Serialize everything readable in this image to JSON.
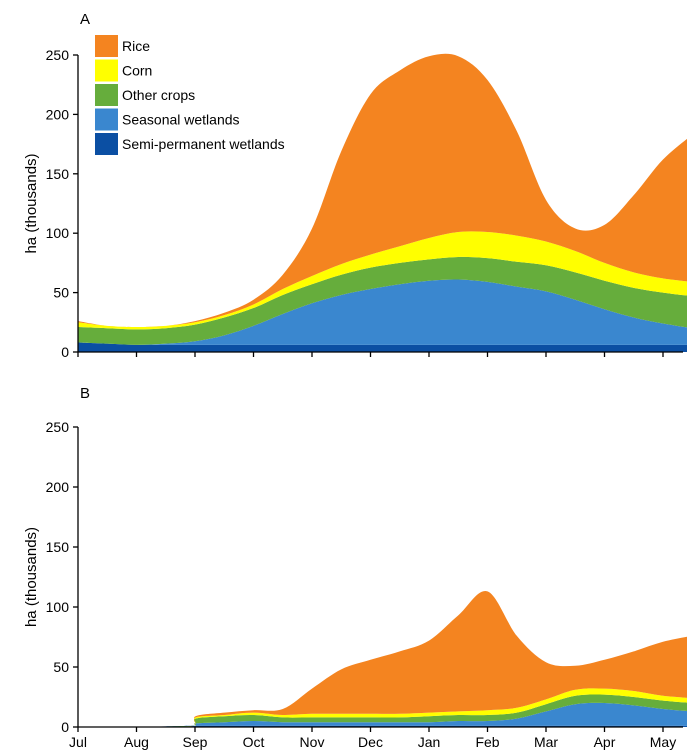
{
  "chart_data": [
    {
      "type": "area",
      "panel": "A",
      "ylabel": "ha (thousands)",
      "ylim": [
        0,
        250
      ],
      "yticks": [
        0,
        50,
        100,
        150,
        200,
        250
      ],
      "x": [
        0,
        0.5,
        1,
        1.5,
        2,
        2.5,
        3,
        3.5,
        4,
        4.5,
        5,
        5.5,
        6,
        6.5,
        7,
        7.5,
        8,
        8.5,
        9,
        9.5,
        10,
        10.5
      ],
      "stacked": true,
      "series": [
        {
          "name": "Semi-permanent wetlands",
          "color": "#0b4fa3",
          "values": [
            8,
            7,
            6,
            6,
            6,
            6,
            6,
            6,
            6,
            6,
            6,
            6,
            6,
            6,
            6,
            6,
            6,
            6,
            6,
            6,
            6,
            6
          ]
        },
        {
          "name": "Seasonal wetlands",
          "color": "#3a87cf",
          "values": [
            0,
            0,
            0,
            1,
            3,
            8,
            16,
            26,
            35,
            42,
            47,
            51,
            54,
            55,
            53,
            49,
            45,
            38,
            30,
            23,
            18,
            14
          ]
        },
        {
          "name": "Other crops",
          "color": "#66ad3c",
          "values": [
            13,
            13,
            13,
            13,
            14,
            15,
            15,
            16,
            16,
            17,
            18,
            18,
            18,
            19,
            20,
            21,
            22,
            23,
            24,
            25,
            26,
            27
          ]
        },
        {
          "name": "Corn",
          "color": "#ffff00",
          "values": [
            4,
            2,
            2,
            2,
            2,
            2,
            3,
            5,
            7,
            9,
            11,
            14,
            18,
            21,
            22,
            22,
            20,
            18,
            15,
            13,
            12,
            12
          ]
        },
        {
          "name": "Rice",
          "color": "#f48420",
          "values": [
            1,
            0,
            0,
            0,
            1,
            2,
            4,
            12,
            40,
            95,
            135,
            148,
            153,
            148,
            128,
            88,
            35,
            19,
            32,
            65,
            100,
            124
          ]
        }
      ],
      "legend_position": "top-left"
    },
    {
      "type": "area",
      "panel": "B",
      "ylabel": "ha (thousands)",
      "ylim": [
        0,
        250
      ],
      "yticks": [
        0,
        50,
        100,
        150,
        200,
        250
      ],
      "x": [
        0,
        0.5,
        1,
        1.5,
        1.99,
        2.01,
        2.5,
        3,
        3.5,
        4,
        4.5,
        5,
        5.5,
        6,
        6.5,
        7,
        7.5,
        8,
        8.5,
        9,
        9.5,
        10,
        10.5
      ],
      "stacked": true,
      "series": [
        {
          "name": "Semi-permanent wetlands",
          "color": "#0b4fa3",
          "values": [
            0,
            0,
            0,
            0.5,
            1,
            1,
            1,
            1,
            1,
            1,
            1,
            1,
            1,
            1,
            1,
            1,
            1,
            1,
            1,
            1,
            1,
            1,
            1
          ]
        },
        {
          "name": "Seasonal wetlands",
          "color": "#3a87cf",
          "values": [
            0,
            0,
            0,
            0,
            0,
            2,
            3,
            4,
            3,
            3,
            3,
            3,
            3,
            3,
            4,
            4,
            6,
            12,
            18,
            19,
            17,
            14,
            12
          ]
        },
        {
          "name": "Other crops",
          "color": "#66ad3c",
          "values": [
            0,
            0,
            0,
            0,
            0,
            4,
            5,
            5,
            4,
            4,
            4,
            4,
            4,
            5,
            5,
            5,
            5,
            6,
            7,
            7,
            7,
            7,
            7
          ]
        },
        {
          "name": "Corn",
          "color": "#ffff00",
          "values": [
            0,
            0,
            0,
            0,
            0,
            1,
            1,
            2,
            2,
            3,
            3,
            3,
            3,
            3,
            3,
            4,
            4,
            4,
            5,
            5,
            5,
            4,
            4
          ]
        },
        {
          "name": "Rice",
          "color": "#f48420",
          "values": [
            0,
            0,
            0,
            0,
            0,
            1,
            2,
            2,
            5,
            21,
            37,
            45,
            52,
            60,
            80,
            99,
            60,
            31,
            20,
            24,
            33,
            45,
            52
          ]
        }
      ]
    }
  ],
  "x_axis": {
    "categories": [
      "Jul",
      "Aug",
      "Sep",
      "Oct",
      "Nov",
      "Dec",
      "Jan",
      "Feb",
      "Mar",
      "Apr",
      "May"
    ]
  },
  "legend": [
    {
      "label": "Rice",
      "color": "#f48420"
    },
    {
      "label": "Corn",
      "color": "#ffff00"
    },
    {
      "label": "Other crops",
      "color": "#66ad3c"
    },
    {
      "label": "Seasonal wetlands",
      "color": "#3a87cf"
    },
    {
      "label": "Semi-permanent wetlands",
      "color": "#0b4fa3"
    }
  ]
}
